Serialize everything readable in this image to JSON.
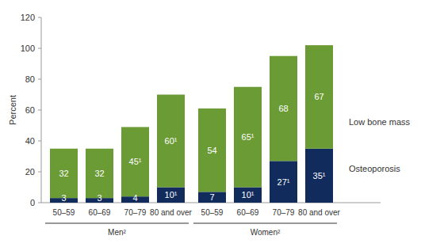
{
  "chart_data": {
    "type": "bar",
    "stacked": true,
    "data_labels": true,
    "grid": false,
    "legend": "right",
    "y_label": "Percent",
    "categories": [
      "50–59",
      "60–69",
      "70–79",
      "80 and over",
      "50–59",
      "60–69",
      "70–79",
      "80 and over"
    ],
    "groups": [
      "Men²",
      "Women²"
    ],
    "series": [
      {
        "name": "Osteoporosis",
        "color": "#112c5c",
        "values": [
          3,
          3,
          4,
          10,
          7,
          10,
          27,
          35
        ],
        "value_labels": [
          "3",
          "3",
          "4",
          "10¹",
          "7",
          "10¹",
          "27¹",
          "35¹"
        ]
      },
      {
        "name": "Low bone mass",
        "color": "#6b9b35",
        "values": [
          32,
          32,
          45,
          60,
          54,
          65,
          68,
          67
        ],
        "value_labels": [
          "32",
          "32",
          "45¹",
          "60¹",
          "54",
          "65¹",
          "68",
          "67"
        ]
      }
    ],
    "ylim": [
      0,
      120
    ],
    "yticks": [
      0,
      20,
      40,
      60,
      80,
      100,
      120
    ]
  }
}
